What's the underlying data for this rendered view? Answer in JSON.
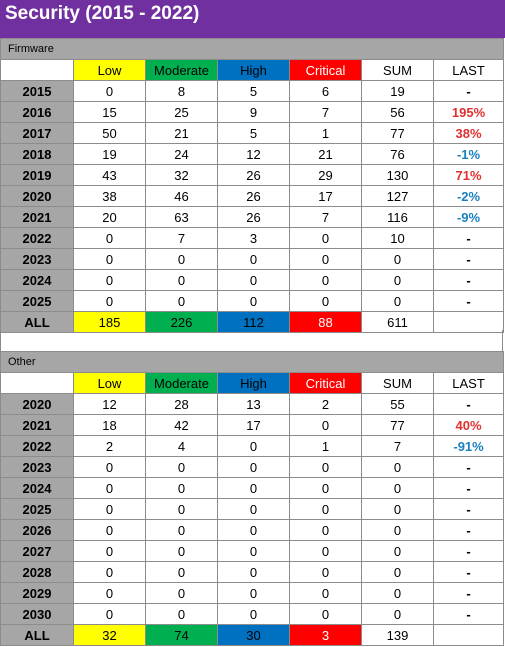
{
  "title": "Security (2015 - 2022)",
  "colors": {
    "title_bar": "#7030a0",
    "low": "#ffff00",
    "moderate": "#00b050",
    "high": "#0070c0",
    "critical": "#ff0000",
    "last_up": "#e03030",
    "last_down": "#1a7fc0"
  },
  "headers": {
    "low": "Low",
    "moderate": "Moderate",
    "high": "High",
    "critical": "Critical",
    "sum": "SUM",
    "last": "LAST"
  },
  "firmware": {
    "label": "Firmware",
    "rows": [
      {
        "year": "2015",
        "low": "0",
        "moderate": "8",
        "high": "5",
        "critical": "6",
        "sum": "19",
        "last": "-"
      },
      {
        "year": "2016",
        "low": "15",
        "moderate": "25",
        "high": "9",
        "critical": "7",
        "sum": "56",
        "last": "195%"
      },
      {
        "year": "2017",
        "low": "50",
        "moderate": "21",
        "high": "5",
        "critical": "1",
        "sum": "77",
        "last": "38%"
      },
      {
        "year": "2018",
        "low": "19",
        "moderate": "24",
        "high": "12",
        "critical": "21",
        "sum": "76",
        "last": "-1%"
      },
      {
        "year": "2019",
        "low": "43",
        "moderate": "32",
        "high": "26",
        "critical": "29",
        "sum": "130",
        "last": "71%"
      },
      {
        "year": "2020",
        "low": "38",
        "moderate": "46",
        "high": "26",
        "critical": "17",
        "sum": "127",
        "last": "-2%"
      },
      {
        "year": "2021",
        "low": "20",
        "moderate": "63",
        "high": "26",
        "critical": "7",
        "sum": "116",
        "last": "-9%"
      },
      {
        "year": "2022",
        "low": "0",
        "moderate": "7",
        "high": "3",
        "critical": "0",
        "sum": "10",
        "last": "-"
      },
      {
        "year": "2023",
        "low": "0",
        "moderate": "0",
        "high": "0",
        "critical": "0",
        "sum": "0",
        "last": "-"
      },
      {
        "year": "2024",
        "low": "0",
        "moderate": "0",
        "high": "0",
        "critical": "0",
        "sum": "0",
        "last": "-"
      },
      {
        "year": "2025",
        "low": "0",
        "moderate": "0",
        "high": "0",
        "critical": "0",
        "sum": "0",
        "last": "-"
      }
    ],
    "total": {
      "year": "ALL",
      "low": "185",
      "moderate": "226",
      "high": "112",
      "critical": "88",
      "sum": "611",
      "last": ""
    }
  },
  "other": {
    "label": "Other",
    "rows": [
      {
        "year": "2020",
        "low": "12",
        "moderate": "28",
        "high": "13",
        "critical": "2",
        "sum": "55",
        "last": "-"
      },
      {
        "year": "2021",
        "low": "18",
        "moderate": "42",
        "high": "17",
        "critical": "0",
        "sum": "77",
        "last": "40%"
      },
      {
        "year": "2022",
        "low": "2",
        "moderate": "4",
        "high": "0",
        "critical": "1",
        "sum": "7",
        "last": "-91%"
      },
      {
        "year": "2023",
        "low": "0",
        "moderate": "0",
        "high": "0",
        "critical": "0",
        "sum": "0",
        "last": "-"
      },
      {
        "year": "2024",
        "low": "0",
        "moderate": "0",
        "high": "0",
        "critical": "0",
        "sum": "0",
        "last": "-"
      },
      {
        "year": "2025",
        "low": "0",
        "moderate": "0",
        "high": "0",
        "critical": "0",
        "sum": "0",
        "last": "-"
      },
      {
        "year": "2026",
        "low": "0",
        "moderate": "0",
        "high": "0",
        "critical": "0",
        "sum": "0",
        "last": "-"
      },
      {
        "year": "2027",
        "low": "0",
        "moderate": "0",
        "high": "0",
        "critical": "0",
        "sum": "0",
        "last": "-"
      },
      {
        "year": "2028",
        "low": "0",
        "moderate": "0",
        "high": "0",
        "critical": "0",
        "sum": "0",
        "last": "-"
      },
      {
        "year": "2029",
        "low": "0",
        "moderate": "0",
        "high": "0",
        "critical": "0",
        "sum": "0",
        "last": "-"
      },
      {
        "year": "2030",
        "low": "0",
        "moderate": "0",
        "high": "0",
        "critical": "0",
        "sum": "0",
        "last": "-"
      }
    ],
    "total": {
      "year": "ALL",
      "low": "32",
      "moderate": "74",
      "high": "30",
      "critical": "3",
      "sum": "139",
      "last": ""
    }
  }
}
